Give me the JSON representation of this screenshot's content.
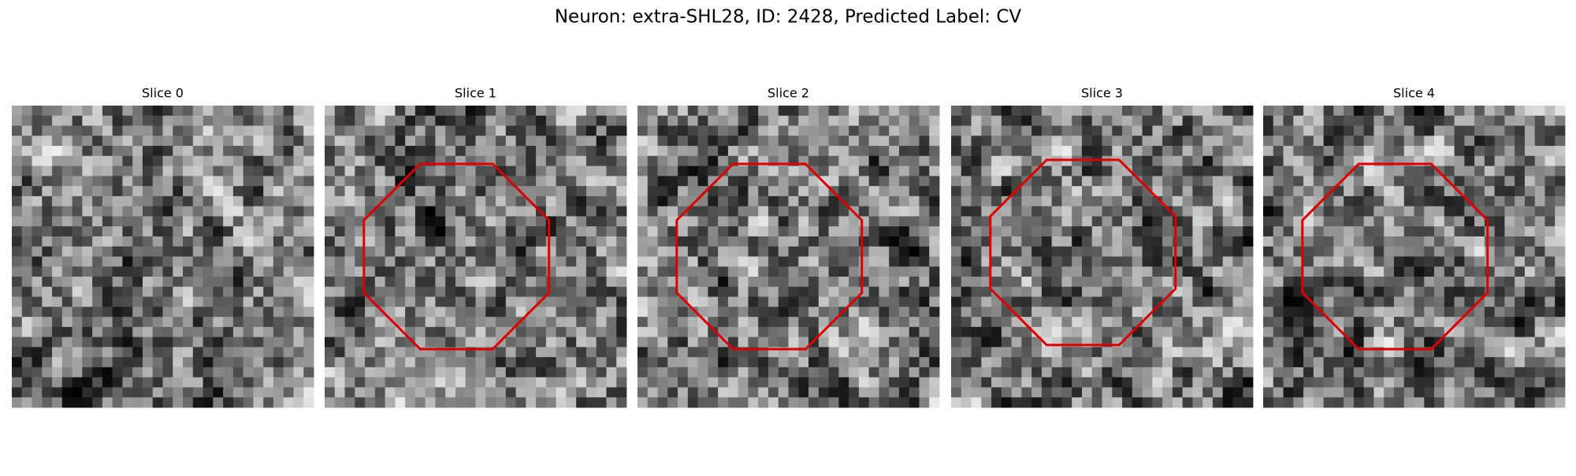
{
  "title": "Neuron: extra-SHL28, ID: 2428, Predicted Label: CV",
  "slices": [
    {
      "label": "Slice 0"
    },
    {
      "label": "Slice 1"
    },
    {
      "label": "Slice 2"
    },
    {
      "label": "Slice 3"
    },
    {
      "label": "Slice 4"
    }
  ]
}
